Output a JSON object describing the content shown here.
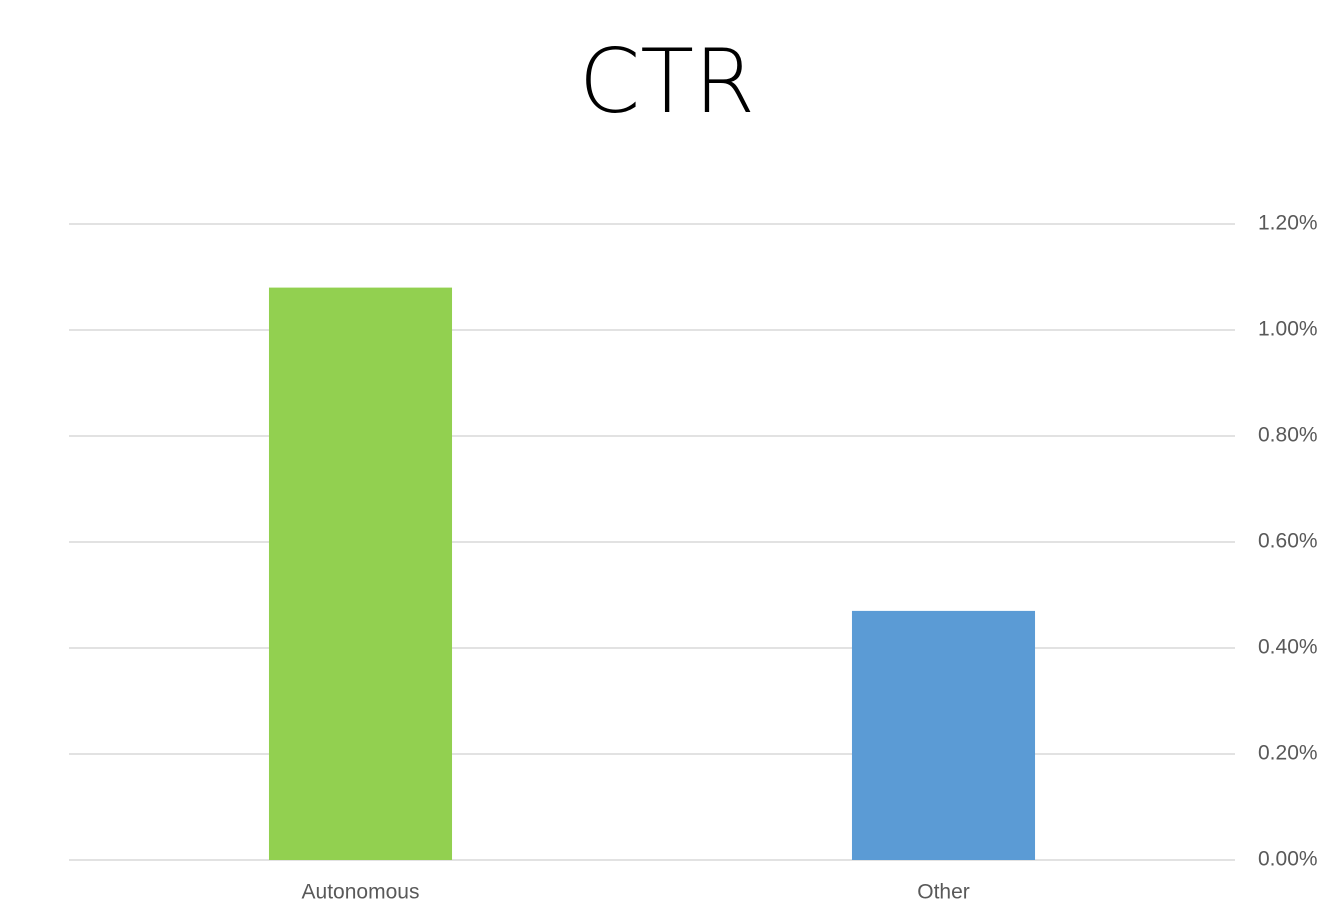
{
  "chart_data": {
    "type": "bar",
    "title": "CTR",
    "categories": [
      "Autonomous",
      "Other"
    ],
    "values": [
      1.08,
      0.47
    ],
    "colors": [
      "#92d050",
      "#5b9bd5"
    ],
    "ylim": [
      0,
      1.2
    ],
    "yticks": [
      {
        "value": 0,
        "label": "0.00%"
      },
      {
        "value": 0.2,
        "label": "0.20%"
      },
      {
        "value": 0.4,
        "label": "0.40%"
      },
      {
        "value": 0.6,
        "label": "0.60%"
      },
      {
        "value": 0.8,
        "label": "0.80%"
      },
      {
        "value": 1.0,
        "label": "1.00%"
      },
      {
        "value": 1.2,
        "label": "1.20%"
      }
    ],
    "grid": true
  }
}
